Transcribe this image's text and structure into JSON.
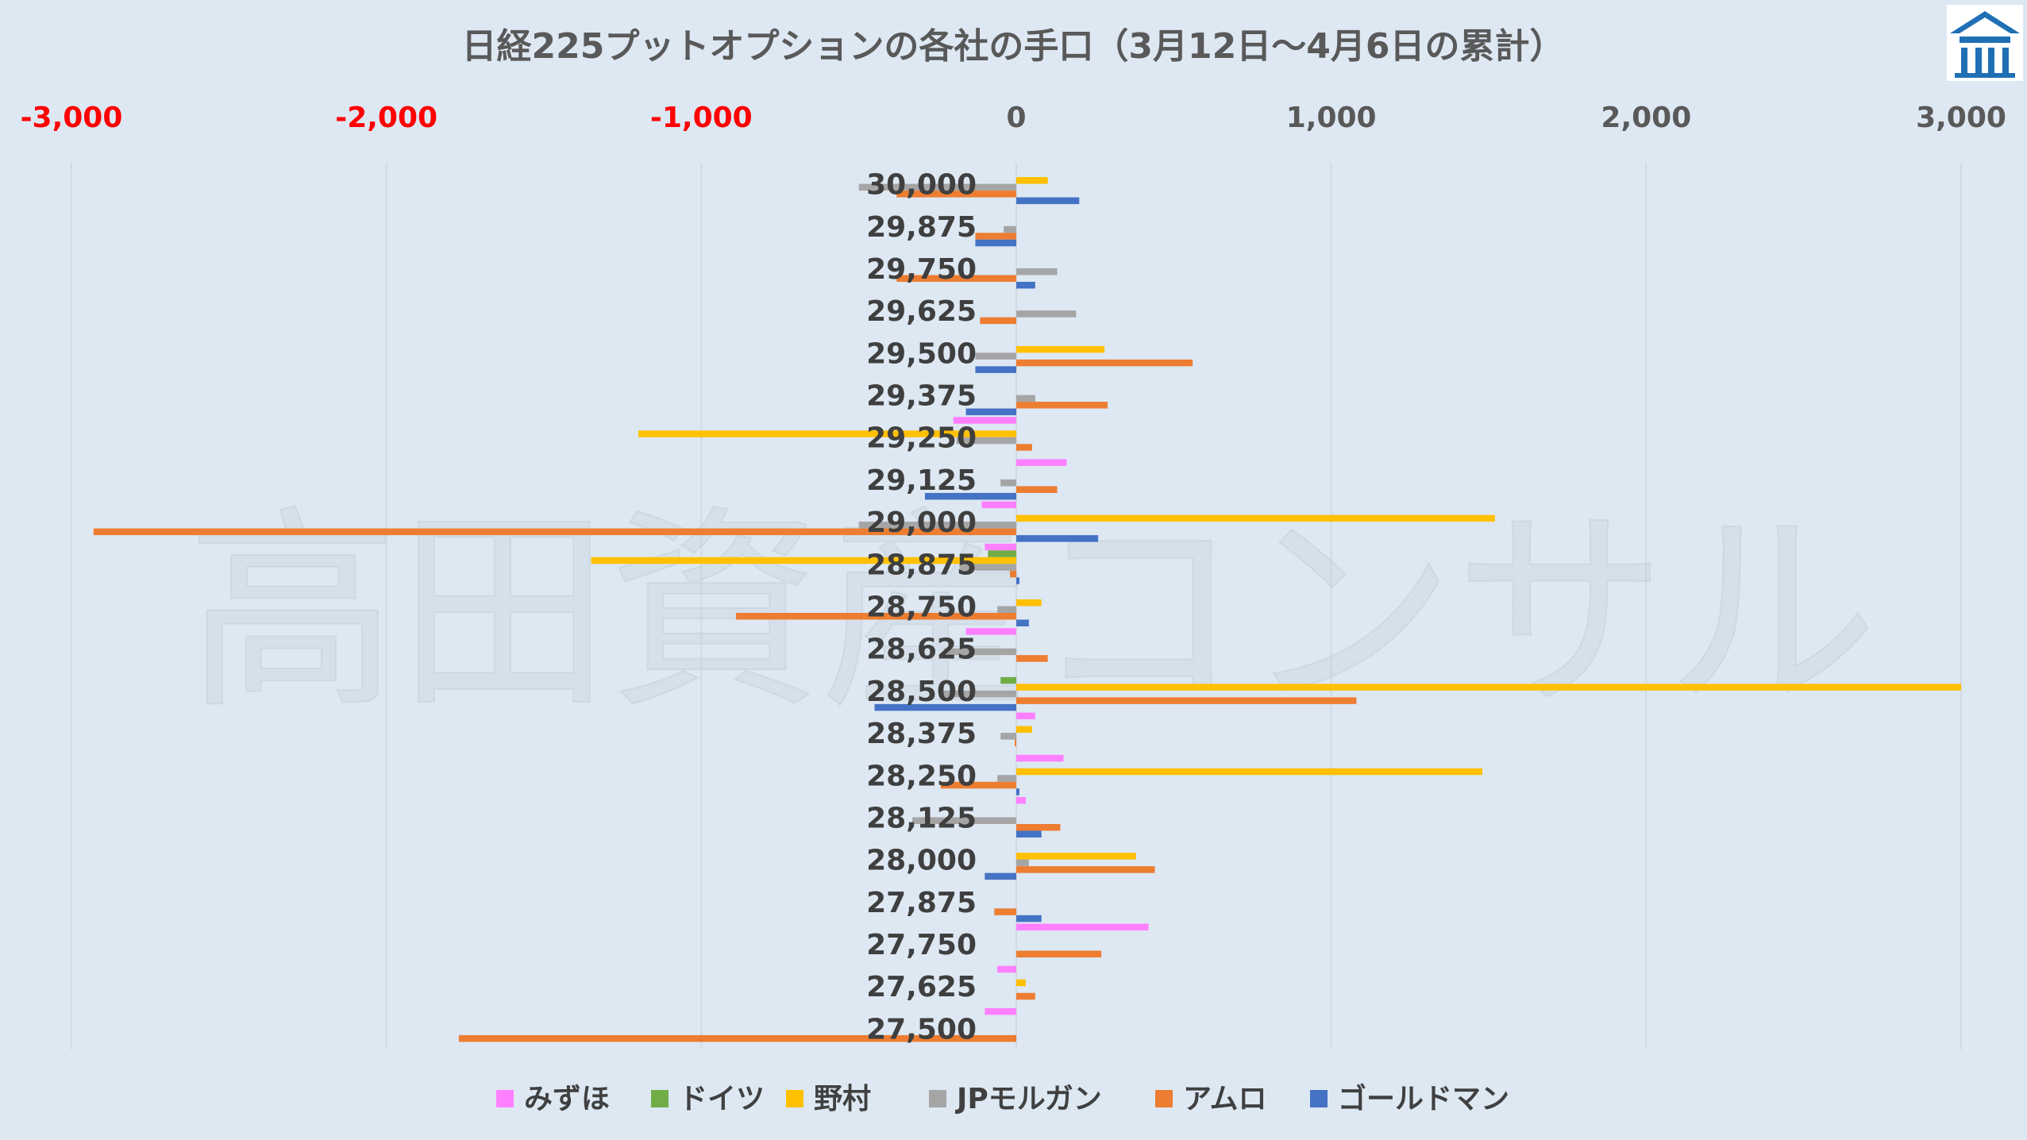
{
  "chart_data": {
    "type": "bar",
    "orientation": "horizontal",
    "title": "日経225プットオプションの各社の手口（3月12日～4月6日の累計）",
    "watermark": "高田資産コンサル",
    "logo": "house-logo",
    "xlim": [
      -3000,
      3000
    ],
    "x_ticks": [
      {
        "value": -3000,
        "label": "-3,000"
      },
      {
        "value": -2000,
        "label": "-2,000"
      },
      {
        "value": -1000,
        "label": "-1,000"
      },
      {
        "value": 0,
        "label": "0"
      },
      {
        "value": 1000,
        "label": "1,000"
      },
      {
        "value": 2000,
        "label": "2,000"
      },
      {
        "value": 3000,
        "label": "3,000"
      }
    ],
    "negative_tick_color": "#ff0000",
    "positive_tick_color": "#595959",
    "categories": [
      "30,000",
      "29,875",
      "29,750",
      "29,625",
      "29,500",
      "29,375",
      "29,250",
      "29,125",
      "29,000",
      "28,875",
      "28,750",
      "28,625",
      "28,500",
      "28,375",
      "28,250",
      "28,125",
      "28,000",
      "27,875",
      "27,750",
      "27,625",
      "27,500"
    ],
    "series": [
      {
        "name": "みずほ",
        "color": "#ff80ff",
        "values": [
          0,
          0,
          0,
          0,
          0,
          0,
          -200,
          160,
          -110,
          -100,
          0,
          -160,
          0,
          60,
          150,
          30,
          0,
          0,
          420,
          -60,
          -100
        ]
      },
      {
        "name": "ドイツ",
        "color": "#70ad47",
        "values": [
          0,
          0,
          0,
          0,
          0,
          0,
          0,
          0,
          0,
          -90,
          0,
          0,
          -50,
          0,
          0,
          0,
          0,
          0,
          0,
          0,
          0
        ]
      },
      {
        "name": "野村",
        "color": "#ffc000",
        "values": [
          100,
          0,
          0,
          0,
          280,
          0,
          -1200,
          0,
          1520,
          -1350,
          80,
          0,
          3000,
          50,
          1480,
          0,
          380,
          0,
          0,
          30,
          0
        ]
      },
      {
        "name": "JPモルガン",
        "color": "#a5a5a5",
        "values": [
          -500,
          -40,
          130,
          190,
          -130,
          60,
          -190,
          -50,
          -500,
          -180,
          -60,
          -230,
          -240,
          -50,
          -60,
          -330,
          40,
          0,
          0,
          0,
          0
        ]
      },
      {
        "name": "アムロ",
        "color": "#ed7d31",
        "values": [
          -380,
          -130,
          -380,
          -115,
          560,
          290,
          50,
          130,
          -2930,
          -20,
          -890,
          100,
          1080,
          -5,
          -240,
          140,
          440,
          -70,
          270,
          60,
          -1770
        ]
      },
      {
        "name": "ゴールドマン",
        "color": "#4472c4",
        "values": [
          200,
          -130,
          60,
          0,
          -130,
          -160,
          0,
          -290,
          260,
          10,
          40,
          0,
          -450,
          0,
          10,
          80,
          -100,
          80,
          0,
          0,
          0
        ]
      }
    ],
    "grid": "vertical",
    "legend": "bottom"
  }
}
